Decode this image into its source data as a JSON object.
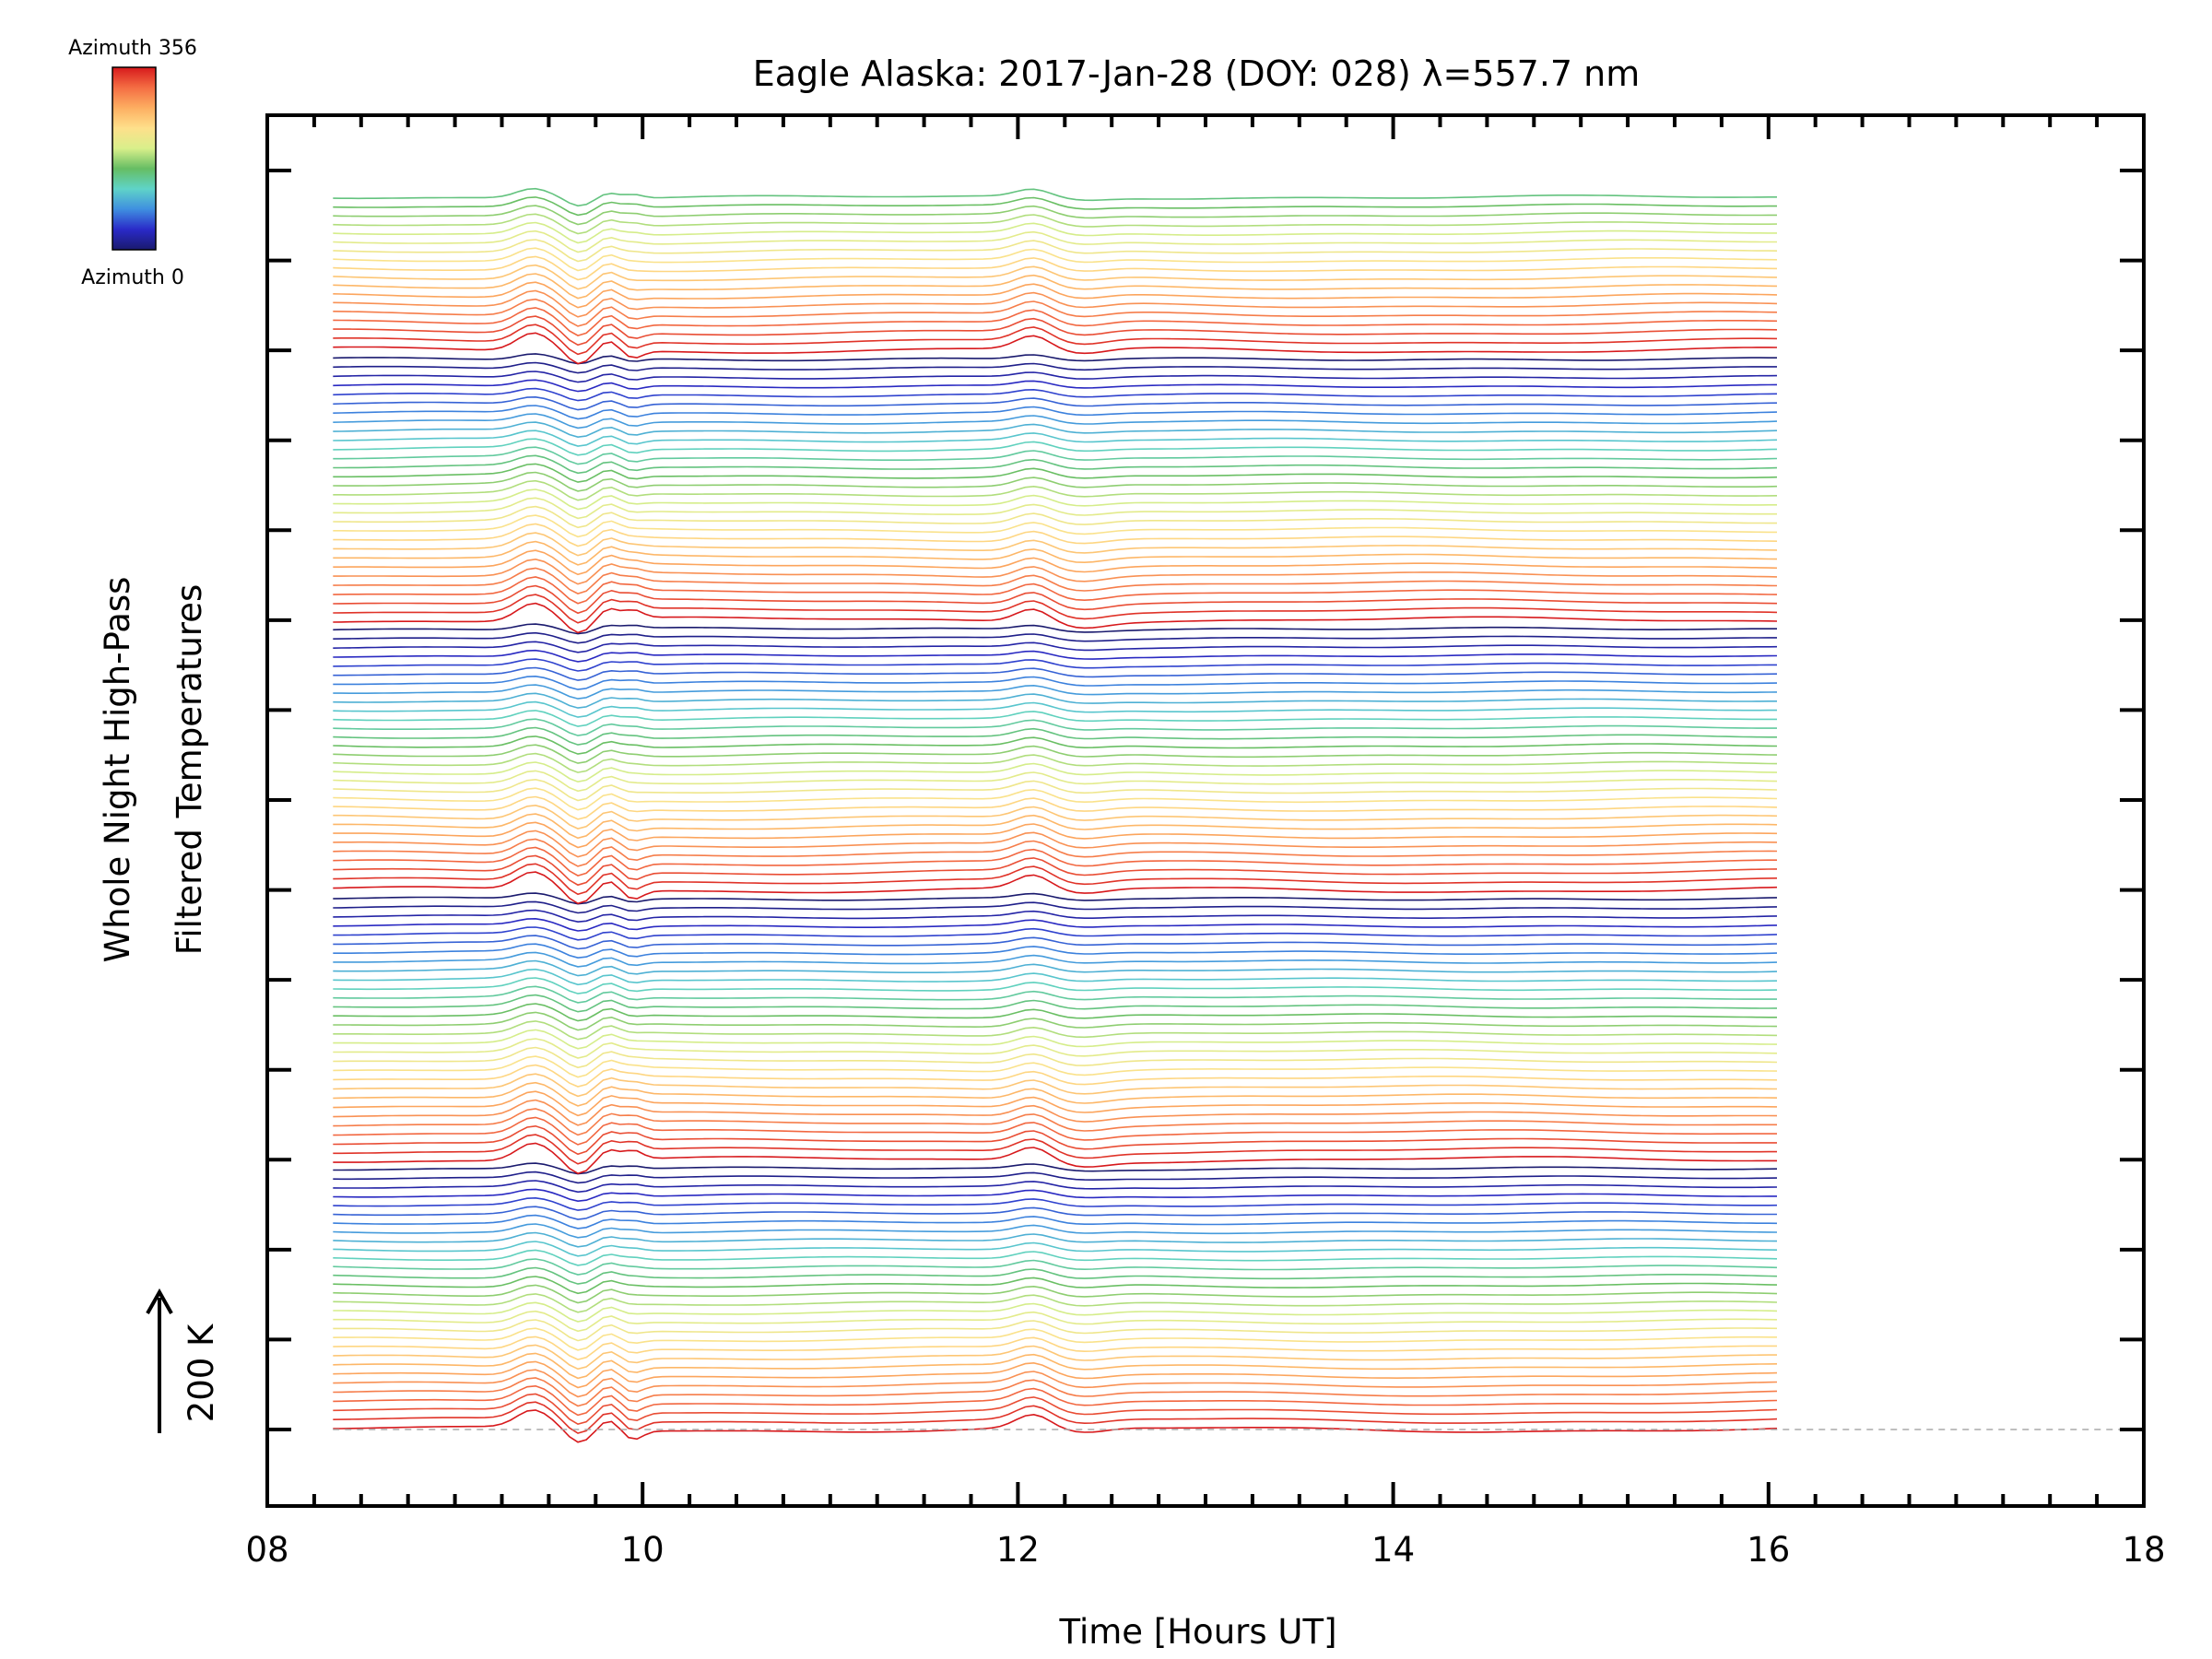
{
  "chart_data": {
    "type": "line",
    "title": "Eagle Alaska: 2017-Jan-28 (DOY: 028) λ=557.7 nm",
    "xlabel": "Time [Hours UT]",
    "ylabel_lines": [
      "Whole Night High-Pass",
      "Filtered Temperatures"
    ],
    "xlim": [
      8,
      18
    ],
    "xticks": [
      "08",
      "10",
      "12",
      "14",
      "16",
      "18"
    ],
    "x_minor_step": 0.25,
    "time_start": 8.35,
    "time_end": 16.05,
    "y_major_tick_count": 15,
    "scale_bar_label": "200 K",
    "colorbar": {
      "top_label": "Azimuth 356",
      "bottom_label": "Azimuth 0",
      "colors": [
        "#d7191c",
        "#f46d43",
        "#fdae61",
        "#fee08b",
        "#d9ef8b",
        "#66bd63",
        "#5fd3c8",
        "#3f8fe0",
        "#2a2ac8",
        "#1a1a6e"
      ]
    },
    "series_count": 138,
    "azimuth_range": [
      0,
      356
    ],
    "baseline_dashed": true,
    "grid": false,
    "legend": "none",
    "features": [
      {
        "time": 9.45,
        "description": "wave event"
      },
      {
        "time": 9.85,
        "description": "wave event"
      },
      {
        "time": 12.1,
        "description": "wave event"
      }
    ]
  },
  "colors": {
    "baseline": "#aaaaaa",
    "axes": "#000000"
  }
}
